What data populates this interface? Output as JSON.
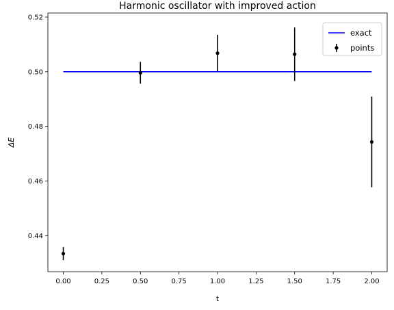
{
  "chart_data": {
    "type": "scatter",
    "title": "Harmonic oscillator with improved action",
    "xlabel": "t",
    "ylabel": "ΔE",
    "xlim": [
      -0.1,
      2.1
    ],
    "ylim": [
      0.4268,
      0.5215
    ],
    "xticks": [
      0.0,
      0.25,
      0.5,
      0.75,
      1.0,
      1.25,
      1.5,
      1.75,
      2.0
    ],
    "xtick_labels": [
      "0.00",
      "0.25",
      "0.50",
      "0.75",
      "1.00",
      "1.25",
      "1.50",
      "1.75",
      "2.00"
    ],
    "yticks": [
      0.44,
      0.46,
      0.48,
      0.5,
      0.52
    ],
    "ytick_labels": [
      "0.44",
      "0.46",
      "0.48",
      "0.50",
      "0.52"
    ],
    "grid": false,
    "legend_position": "top-right",
    "series": [
      {
        "name": "exact",
        "type": "line",
        "color": "#0000ff",
        "x": [
          0.0,
          2.0
        ],
        "y": [
          0.5,
          0.5
        ]
      },
      {
        "name": "points",
        "type": "errorbar",
        "color": "#000000",
        "x": [
          0.0,
          0.5,
          1.0,
          1.5,
          2.0
        ],
        "y": [
          0.4334,
          0.4996,
          0.5068,
          0.5064,
          0.4743
        ],
        "yerr": [
          0.0024,
          0.004,
          0.0067,
          0.0098,
          0.0166
        ]
      }
    ]
  }
}
